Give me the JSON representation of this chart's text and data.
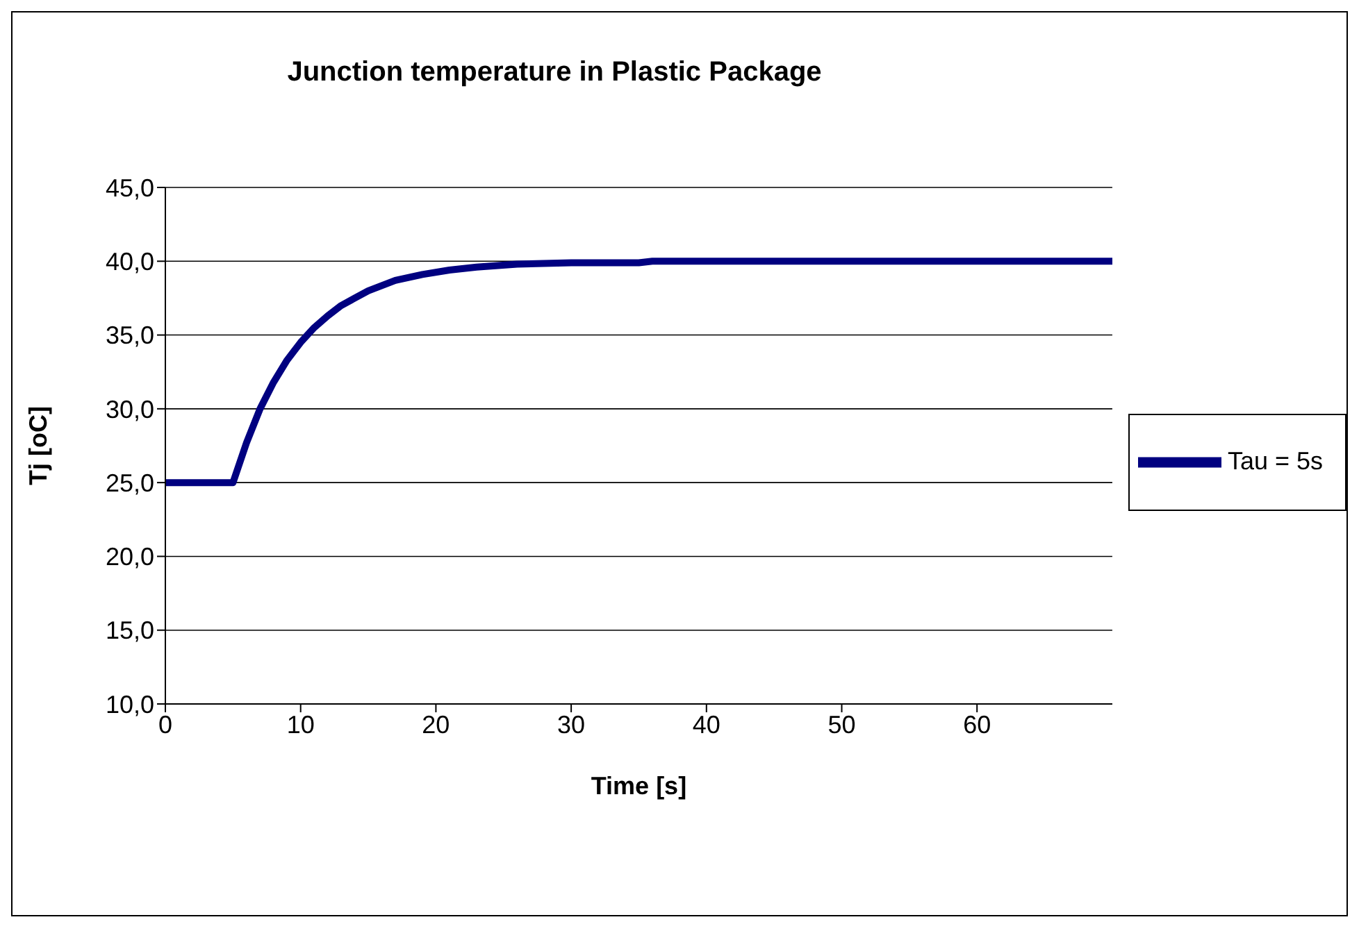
{
  "chart_data": {
    "type": "line",
    "title": "Junction temperature in Plastic Package",
    "xlabel": "Time [s]",
    "ylabel": "Tj [oC]",
    "x": [
      0,
      5,
      6,
      7,
      8,
      9,
      10,
      11,
      12,
      13,
      14,
      15,
      17,
      19,
      21,
      23,
      26,
      30,
      35,
      36,
      50,
      70
    ],
    "series": [
      {
        "name": "Tau = 5s",
        "color": "#000080",
        "values": [
          25,
          25,
          27.7,
          30.0,
          31.8,
          33.3,
          34.5,
          35.5,
          36.3,
          37.0,
          37.5,
          38.0,
          38.7,
          39.1,
          39.4,
          39.6,
          39.8,
          39.9,
          39.9,
          40,
          40,
          40
        ]
      }
    ],
    "xlim": [
      0,
      70
    ],
    "xticks": [
      0,
      10,
      20,
      30,
      40,
      50,
      60
    ],
    "ylim": [
      10,
      45
    ],
    "yticks": [
      {
        "value": 10,
        "label": "10,0"
      },
      {
        "value": 15,
        "label": "15,0"
      },
      {
        "value": 20,
        "label": "20,0"
      },
      {
        "value": 25,
        "label": "25,0"
      },
      {
        "value": 30,
        "label": "30,0"
      },
      {
        "value": 35,
        "label": "35,0"
      },
      {
        "value": 40,
        "label": "40,0"
      },
      {
        "value": 45,
        "label": "45,0"
      }
    ],
    "grid": "y",
    "legend": "right",
    "marker": "none",
    "line_style": "solid"
  }
}
